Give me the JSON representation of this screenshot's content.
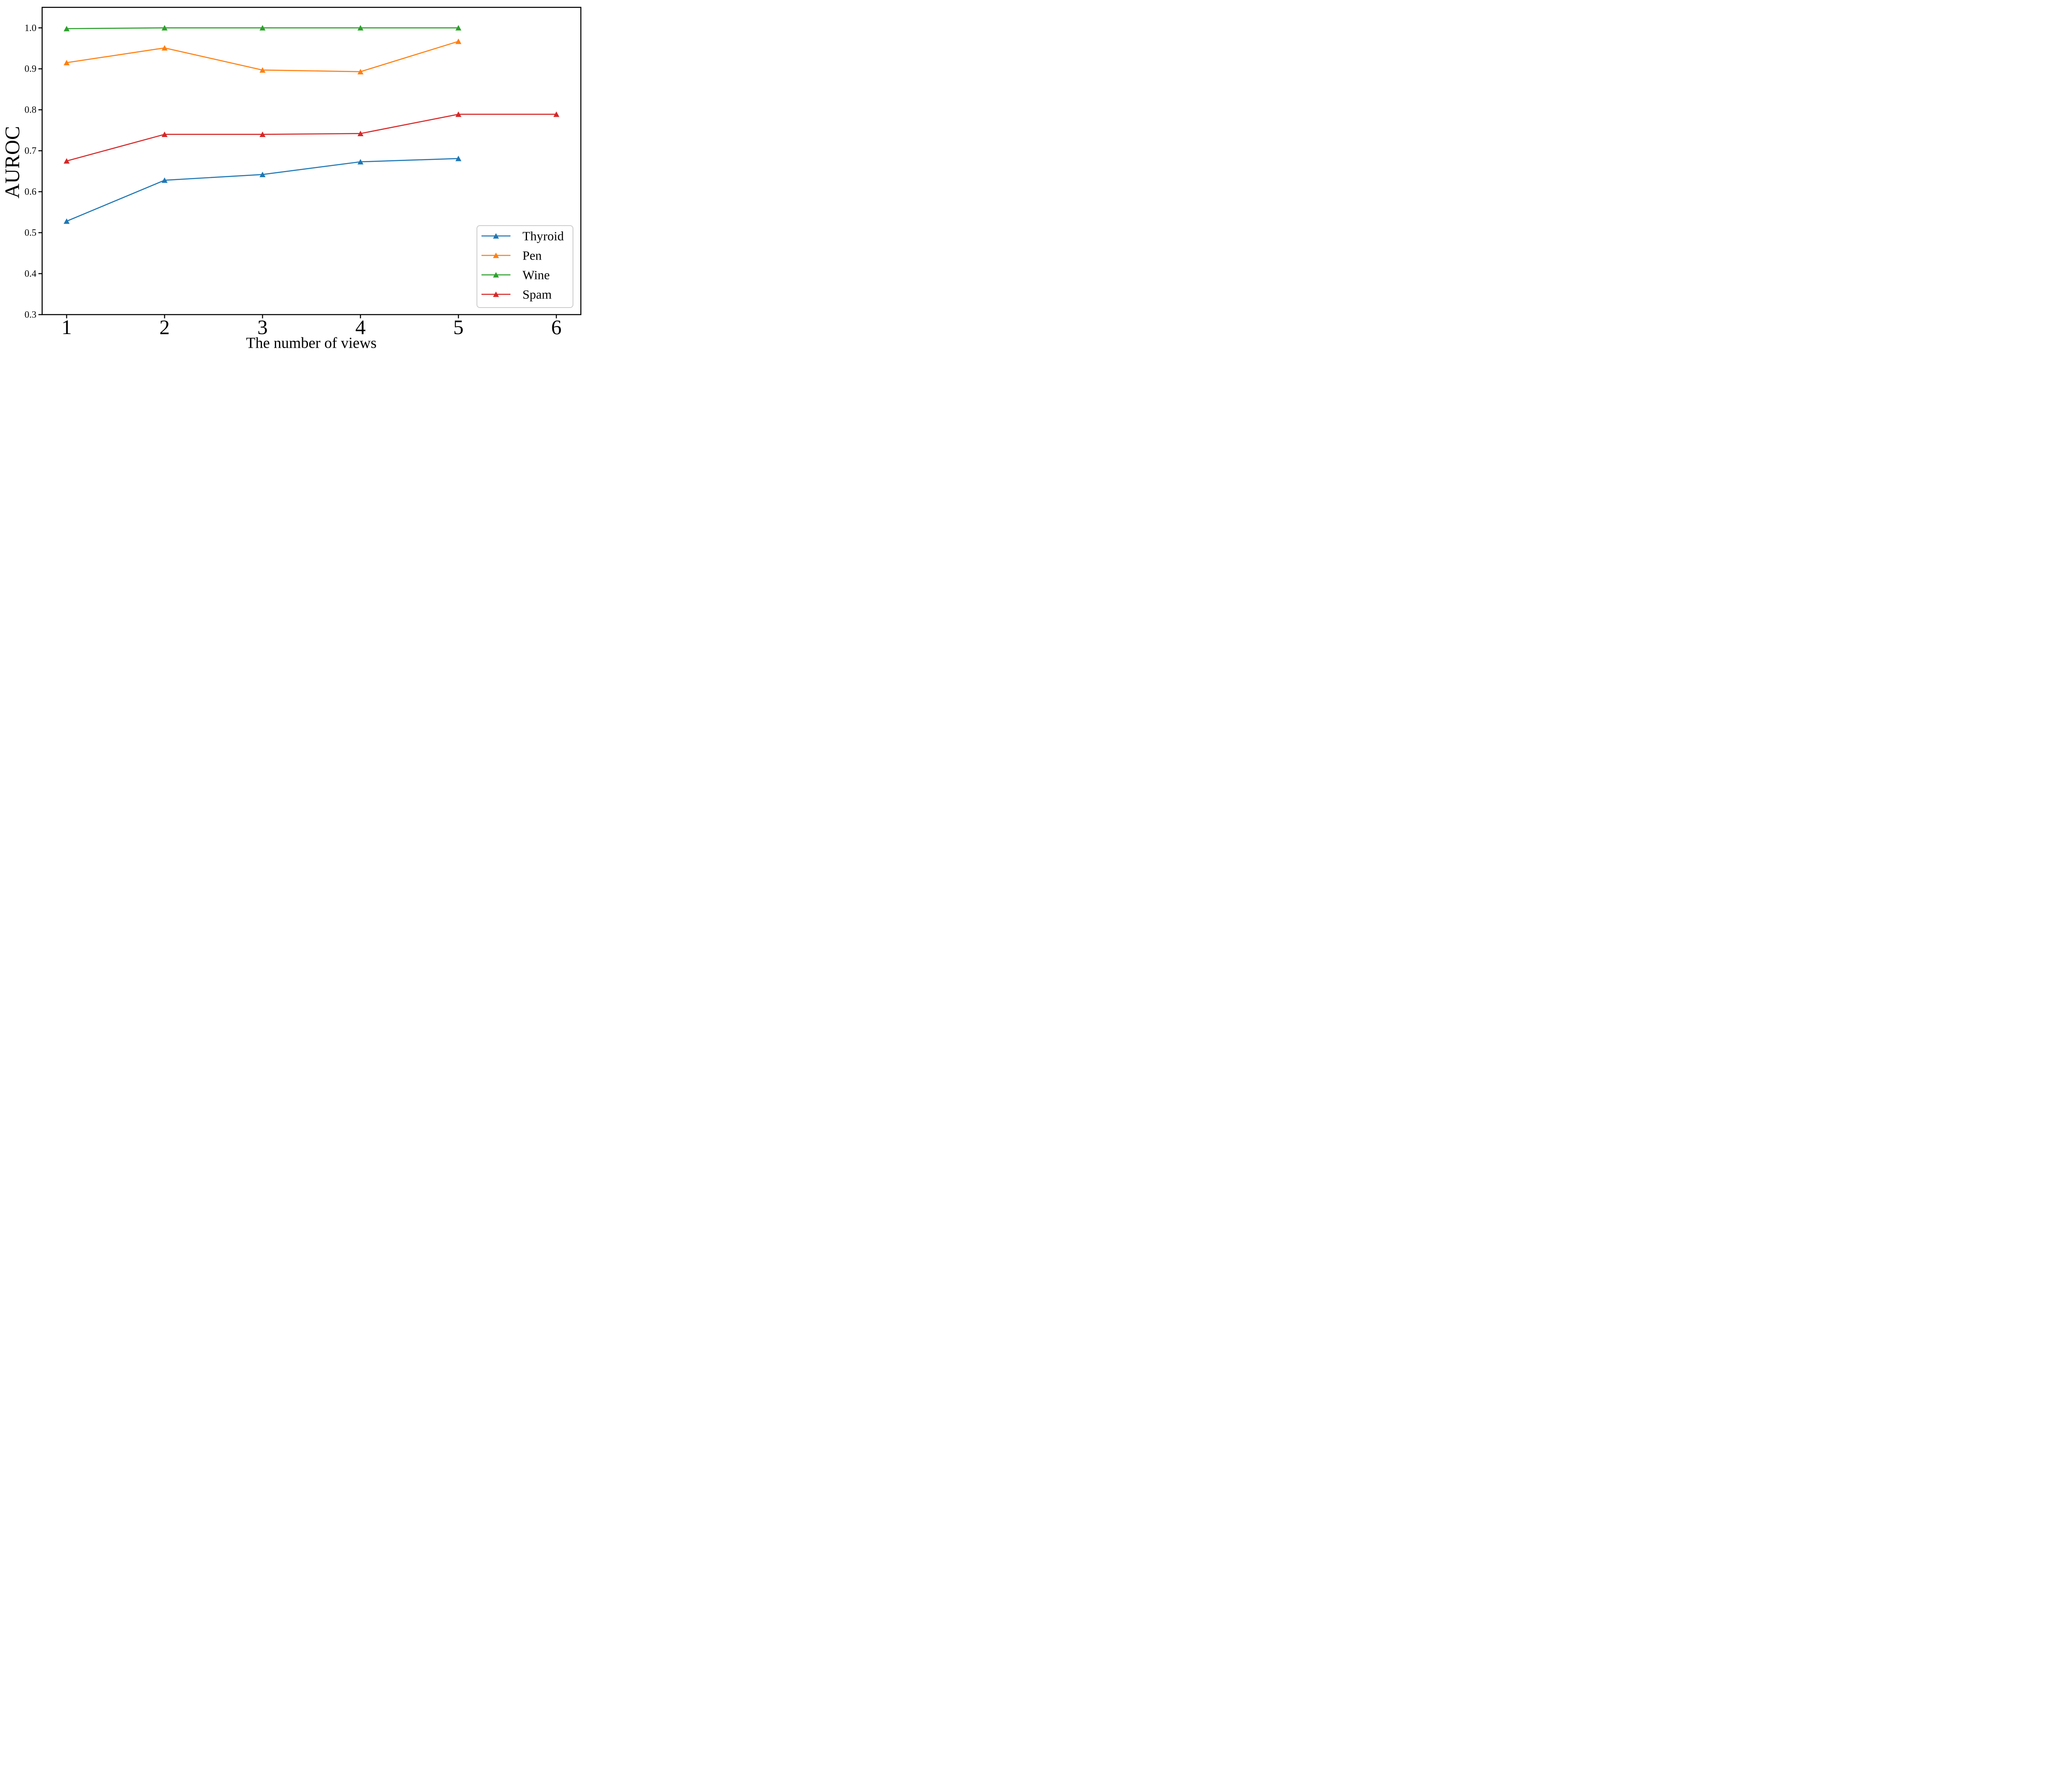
{
  "figure": {
    "background_color": "#ffffff",
    "plot_border_color": "#000000"
  },
  "chart_data": {
    "type": "line",
    "title": "",
    "xlabel": "The number of views",
    "ylabel": "AUROC",
    "xlim": [
      0.75,
      6.25
    ],
    "ylim": [
      0.3,
      1.05
    ],
    "x_ticks": [
      1,
      2,
      3,
      4,
      5,
      6
    ],
    "x_tick_labels": [
      "1",
      "2",
      "3",
      "4",
      "5",
      "6"
    ],
    "y_ticks": [
      0.3,
      0.4,
      0.5,
      0.6,
      0.7,
      0.8,
      0.9,
      1.0
    ],
    "y_tick_labels": [
      "0.3",
      "0.4",
      "0.5",
      "0.6",
      "0.7",
      "0.8",
      "0.9",
      "1.0"
    ],
    "grid": false,
    "marker": "triangle-up",
    "legend_position": "lower right",
    "series": [
      {
        "name": "Thyroid",
        "color": "#1f77b4",
        "x": [
          1,
          2,
          3,
          4,
          5
        ],
        "y": [
          0.528,
          0.628,
          0.642,
          0.673,
          0.681
        ]
      },
      {
        "name": "Pen",
        "color": "#ff7f0e",
        "x": [
          1,
          2,
          3,
          4,
          5
        ],
        "y": [
          0.915,
          0.951,
          0.897,
          0.893,
          0.967
        ]
      },
      {
        "name": "Wine",
        "color": "#2ca02c",
        "x": [
          1,
          2,
          3,
          4,
          5
        ],
        "y": [
          0.998,
          1.0,
          1.0,
          1.0,
          1.0
        ]
      },
      {
        "name": "Spam",
        "color": "#d62728",
        "x": [
          1,
          2,
          3,
          4,
          5,
          6
        ],
        "y": [
          0.675,
          0.74,
          0.74,
          0.742,
          0.789,
          0.789
        ]
      }
    ],
    "legend_border_color": "#cccccc"
  }
}
